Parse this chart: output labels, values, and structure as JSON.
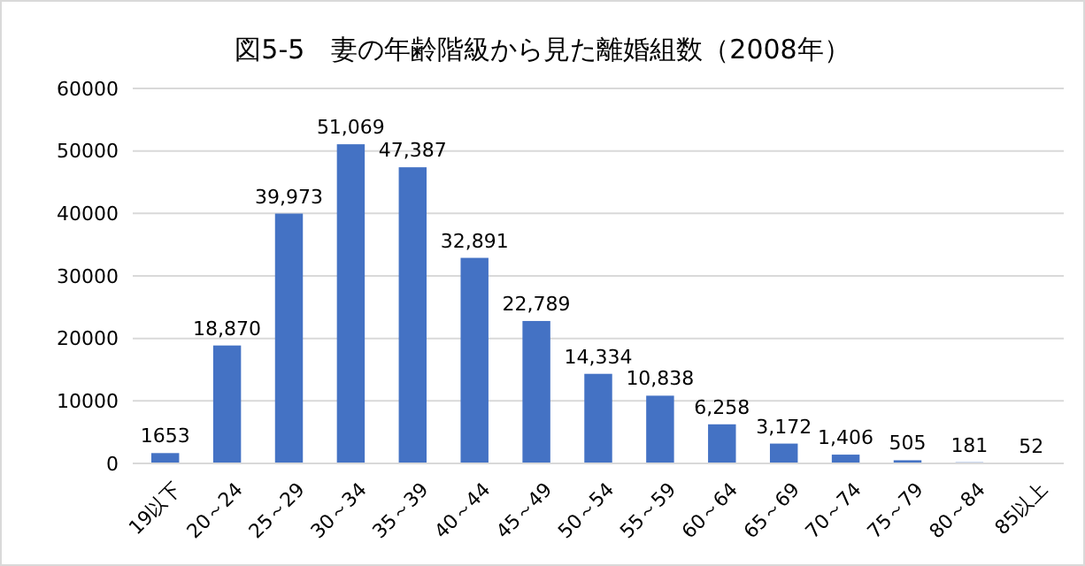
{
  "chart_data": {
    "type": "bar",
    "title": "図5-5　妻の年齢階級から見た離婚組数（2008年）",
    "categories": [
      "19以下",
      "20～24",
      "25～29",
      "30～34",
      "35～39",
      "40～44",
      "45～49",
      "50～54",
      "55～59",
      "60～64",
      "65～69",
      "70～74",
      "75～79",
      "80～84",
      "85以上"
    ],
    "values": [
      1653,
      18870,
      39973,
      51069,
      47387,
      32891,
      22789,
      14334,
      10838,
      6258,
      3172,
      1406,
      505,
      181,
      52
    ],
    "value_labels": [
      "1653",
      "18,870",
      "39,973",
      "51,069",
      "47,387",
      "32,891",
      "22,789",
      "14,334",
      "10,838",
      "6,258",
      "3,172",
      "1,406",
      "505",
      "181",
      "52"
    ],
    "color": "#4472c4",
    "ylim": [
      0,
      60000
    ],
    "yticks": [
      0,
      10000,
      20000,
      30000,
      40000,
      50000,
      60000
    ],
    "grid": "y"
  }
}
